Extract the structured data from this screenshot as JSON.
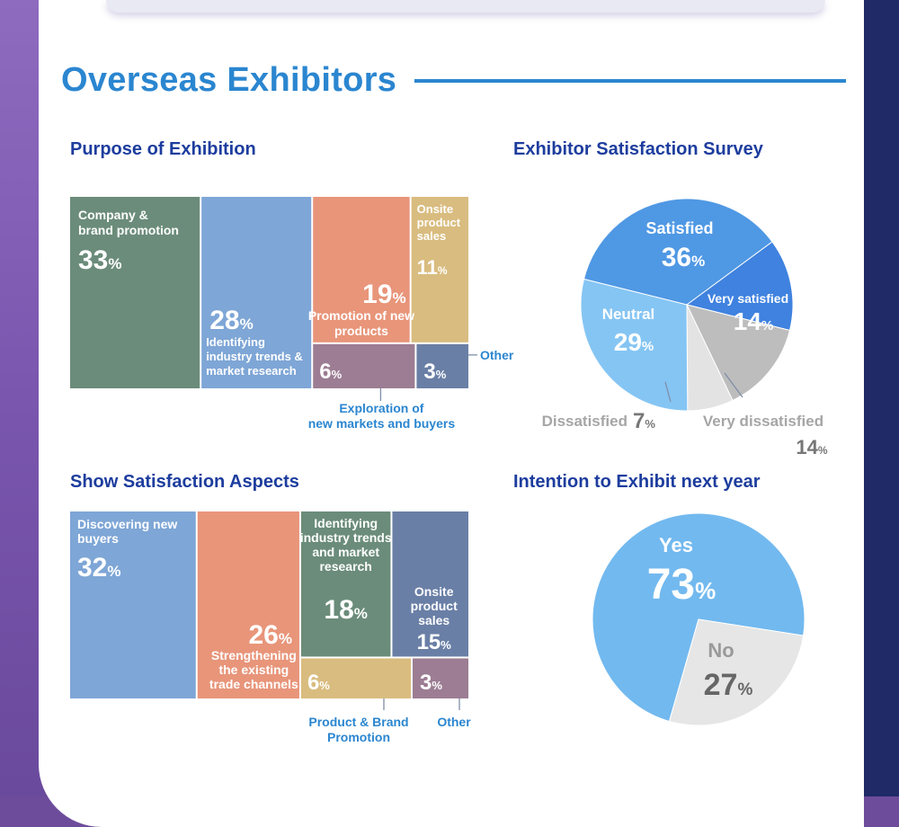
{
  "page": {
    "title": "Overseas Exhibitors",
    "colors": {
      "accent": "#2b86d0",
      "subtitle": "#1d3d9e",
      "label_blue": "#2b86d0"
    }
  },
  "chart_data": [
    {
      "type": "treemap",
      "title": "Purpose of Exhibition",
      "unit": "%",
      "items": [
        {
          "label": "Company & brand promotion",
          "value": 33,
          "color": "#6b8c7a"
        },
        {
          "label": "Identifying industry trends & market research",
          "value": 28,
          "color": "#7ea6d6"
        },
        {
          "label": "Promotion of new products",
          "value": 19,
          "color": "#e8957a"
        },
        {
          "label": "Onsite product sales",
          "value": 11,
          "color": "#d9bc7f"
        },
        {
          "label": "Exploration of new markets and buyers",
          "value": 6,
          "color": "#9c7d93"
        },
        {
          "label": "Other",
          "value": 3,
          "color": "#6a7fa6"
        }
      ]
    },
    {
      "type": "pie",
      "title": "Exhibitor Satisfaction Survey",
      "unit": "%",
      "slices": [
        {
          "label": "Satisfied",
          "value": 36,
          "color": "#4f98e4"
        },
        {
          "label": "Very satisfied",
          "value": 14,
          "color": "#3f82df"
        },
        {
          "label": "Very dissatisfied",
          "value": 14,
          "color": "#bdbdbd"
        },
        {
          "label": "Dissatisfied",
          "value": 7,
          "color": "#e3e3e3"
        },
        {
          "label": "Neutral",
          "value": 29,
          "color": "#85c5f3"
        }
      ]
    },
    {
      "type": "treemap",
      "title": "Show Satisfaction Aspects",
      "unit": "%",
      "items": [
        {
          "label": "Discovering new buyers",
          "value": 32,
          "color": "#7ea6d6"
        },
        {
          "label": "Strengthening the existing trade channels",
          "value": 26,
          "color": "#e8957a"
        },
        {
          "label": "Identifying industry trends and market research",
          "value": 18,
          "color": "#6b8c7a"
        },
        {
          "label": "Onsite product sales",
          "value": 15,
          "color": "#6a7fa6"
        },
        {
          "label": "Product & Brand Promotion",
          "value": 6,
          "color": "#d9bc7f"
        },
        {
          "label": "Other",
          "value": 3,
          "color": "#9c7d93"
        }
      ]
    },
    {
      "type": "pie",
      "title": "Intention to Exhibit next year",
      "unit": "%",
      "slices": [
        {
          "label": "Yes",
          "value": 73,
          "color": "#72b9ef"
        },
        {
          "label": "No",
          "value": 27,
          "color": "#e6e6e6"
        }
      ]
    }
  ]
}
